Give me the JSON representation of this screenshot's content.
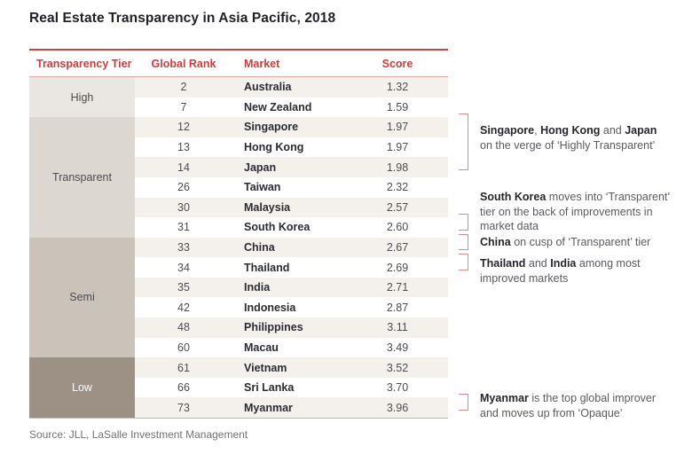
{
  "title": "Real Estate Transparency in Asia Pacific, 2018",
  "source": "Source: JLL, LaSalle Investment Management",
  "colors": {
    "header_red": "#d23a3c",
    "top_rule": "#c94444",
    "light_rule": "#e5a9a4",
    "bracket": "#e08787",
    "stripe": "#f4f1ed",
    "title_color": "#21212c",
    "market_color": "#2b2b34",
    "body_text": "#4d4d54",
    "note_bold": "#26262f",
    "note_text": "#5b5b63",
    "source_color": "#73737b"
  },
  "table": {
    "headers": [
      "Transparency Tier",
      "Global Rank",
      "Market",
      "Score"
    ],
    "tiers": [
      {
        "label": "High",
        "rows": 2,
        "bg": "#eae6e1",
        "text": "#4b4b50"
      },
      {
        "label": "Transparent",
        "rows": 6,
        "bg": "#dcd7d0",
        "text": "#4b4b50"
      },
      {
        "label": "Semi",
        "rows": 6,
        "bg": "#cbc3b9",
        "text": "#4b4b50"
      },
      {
        "label": "Low",
        "rows": 3,
        "bg": "#9c9184",
        "text": "#fdfdfc"
      }
    ],
    "rows": [
      {
        "rank": "2",
        "market": "Australia",
        "score": "1.32"
      },
      {
        "rank": "7",
        "market": "New Zealand",
        "score": "1.59"
      },
      {
        "rank": "12",
        "market": "Singapore",
        "score": "1.97"
      },
      {
        "rank": "13",
        "market": "Hong Kong",
        "score": "1.97"
      },
      {
        "rank": "14",
        "market": "Japan",
        "score": "1.98"
      },
      {
        "rank": "26",
        "market": "Taiwan",
        "score": "2.32"
      },
      {
        "rank": "30",
        "market": "Malaysia",
        "score": "2.57"
      },
      {
        "rank": "31",
        "market": "South Korea",
        "score": "2.60"
      },
      {
        "rank": "33",
        "market": "China",
        "score": "2.67"
      },
      {
        "rank": "34",
        "market": "Thailand",
        "score": "2.69"
      },
      {
        "rank": "35",
        "market": "India",
        "score": "2.71"
      },
      {
        "rank": "42",
        "market": "Indonesia",
        "score": "2.87"
      },
      {
        "rank": "48",
        "market": "Philippines",
        "score": "3.11"
      },
      {
        "rank": "60",
        "market": "Macau",
        "score": "3.49"
      },
      {
        "rank": "61",
        "market": "Vietnam",
        "score": "3.52"
      },
      {
        "rank": "66",
        "market": "Sri Lanka",
        "score": "3.70"
      },
      {
        "rank": "73",
        "market": "Myanmar",
        "score": "3.96"
      }
    ]
  },
  "annotations": [
    {
      "rows": [
        3,
        5
      ],
      "text_dy": 11,
      "lines": [
        [
          {
            "text": "Singapore",
            "bold": true
          },
          {
            "text": ", ",
            "bold": false
          },
          {
            "text": "Hong Kong",
            "bold": true
          },
          {
            "text": " and ",
            "bold": false
          },
          {
            "text": "Japan",
            "bold": true
          }
        ],
        [
          {
            "text": "on the verge of ‘Highly Transparent’",
            "bold": false
          }
        ]
      ]
    },
    {
      "rows": [
        8,
        8
      ],
      "text_dy": -27,
      "lines": [
        [
          {
            "text": "South Korea",
            "bold": true
          },
          {
            "text": " moves into ‘Transparent’",
            "bold": false
          }
        ],
        [
          {
            "text": "tier on the back of improvements in",
            "bold": false
          }
        ],
        [
          {
            "text": "market data",
            "bold": false
          }
        ]
      ]
    },
    {
      "rows": [
        9,
        9
      ],
      "text_dy": 1,
      "lines": [
        [
          {
            "text": "China",
            "bold": true
          },
          {
            "text": " on cusp of ‘Transparent’ tier",
            "bold": false
          }
        ]
      ]
    },
    {
      "rows": [
        10,
        10
      ],
      "text_dy": 3,
      "lines": [
        [
          {
            "text": "Thailand",
            "bold": true
          },
          {
            "text": " and ",
            "bold": false
          },
          {
            "text": "India",
            "bold": true
          },
          {
            "text": " among most",
            "bold": false
          }
        ],
        [
          {
            "text": "improved markets",
            "bold": false
          }
        ]
      ]
    },
    {
      "rows": [
        17,
        17
      ],
      "text_dy": -3,
      "lines": [
        [
          {
            "text": "Myanmar",
            "bold": true
          },
          {
            "text": " is the top global improver",
            "bold": false
          }
        ],
        [
          {
            "text": "and moves up from ‘Opaque’",
            "bold": false
          }
        ]
      ]
    }
  ],
  "chart_data": {
    "type": "table",
    "title": "Real Estate Transparency in Asia Pacific, 2018",
    "columns": [
      "Transparency Tier",
      "Global Rank",
      "Market",
      "Score"
    ],
    "rows": [
      [
        "High",
        2,
        "Australia",
        1.32
      ],
      [
        "High",
        7,
        "New Zealand",
        1.59
      ],
      [
        "Transparent",
        12,
        "Singapore",
        1.97
      ],
      [
        "Transparent",
        13,
        "Hong Kong",
        1.97
      ],
      [
        "Transparent",
        14,
        "Japan",
        1.98
      ],
      [
        "Transparent",
        26,
        "Taiwan",
        2.32
      ],
      [
        "Transparent",
        30,
        "Malaysia",
        2.57
      ],
      [
        "Transparent",
        31,
        "South Korea",
        2.6
      ],
      [
        "Semi",
        33,
        "China",
        2.67
      ],
      [
        "Semi",
        34,
        "Thailand",
        2.69
      ],
      [
        "Semi",
        35,
        "India",
        2.71
      ],
      [
        "Semi",
        42,
        "Indonesia",
        2.87
      ],
      [
        "Semi",
        48,
        "Philippines",
        3.11
      ],
      [
        "Semi",
        60,
        "Macau",
        3.49
      ],
      [
        "Low",
        61,
        "Vietnam",
        3.52
      ],
      [
        "Low",
        66,
        "Sri Lanka",
        3.7
      ],
      [
        "Low",
        73,
        "Myanmar",
        3.96
      ]
    ],
    "annotations": [
      "Singapore, Hong Kong and Japan on the verge of ‘Highly Transparent’",
      "South Korea moves into ‘Transparent’ tier on the back of improvements in market data",
      "China on cusp of ‘Transparent’ tier",
      "Thailand and India among most improved markets",
      "Myanmar is the top global improver and moves up from ‘Opaque’"
    ],
    "source": "Source: JLL, LaSalle Investment Management"
  }
}
